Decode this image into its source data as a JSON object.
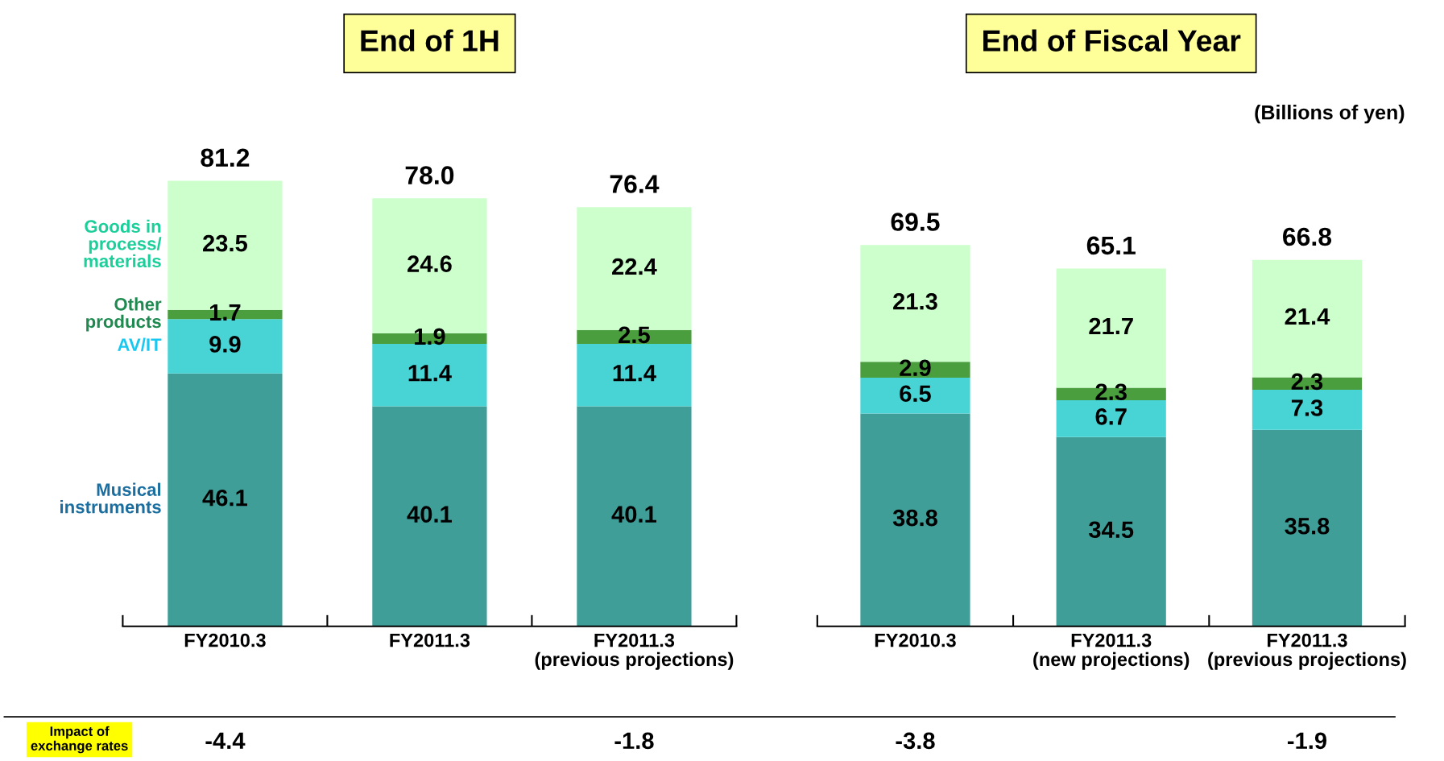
{
  "chart_data": [
    {
      "type": "bar",
      "title": "End of 1H",
      "stacked": true,
      "data_labels": true,
      "grid": false,
      "legend": false,
      "categories": [
        "FY2010.3",
        "FY2011.3",
        "FY2011.3\n(previous projections)"
      ],
      "series": [
        {
          "name": "Musical\ninstruments",
          "color": "#3f9f98",
          "values": [
            46.1,
            40.1,
            40.1
          ]
        },
        {
          "name": "AV/IT",
          "color": "#48d4d4",
          "values": [
            9.9,
            11.4,
            11.4
          ]
        },
        {
          "name": "Other\nproducts",
          "color": "#4a9e3e",
          "values": [
            1.7,
            1.9,
            2.5
          ]
        },
        {
          "name": "Goods in\nprocess/\nmaterials",
          "color": "#ccffcc",
          "values": [
            23.5,
            24.6,
            22.4
          ]
        }
      ],
      "totals": [
        "81.2",
        "78.0",
        "76.4"
      ],
      "annotations": [
        "Impact of\nexchange rates",
        "-4.4",
        "-1.8"
      ]
    },
    {
      "type": "bar",
      "title": "End of Fiscal Year",
      "stacked": true,
      "data_labels": true,
      "grid": false,
      "legend": false,
      "categories": [
        "FY2010.3",
        "FY2011.3\n(new projections)",
        "FY2011.3\n(previous projections)"
      ],
      "series": [
        {
          "color": "#3f9f98",
          "values": [
            38.8,
            34.5,
            35.8
          ]
        },
        {
          "color": "#48d4d4",
          "values": [
            6.5,
            6.7,
            7.3
          ]
        },
        {
          "color": "#4a9e3e",
          "values": [
            2.9,
            2.3,
            2.3
          ]
        },
        {
          "color": "#ccffcc",
          "values": [
            21.3,
            21.7,
            21.4
          ]
        }
      ],
      "totals": [
        "69.5",
        "65.1",
        "66.8"
      ],
      "annotations": [
        "(Billions of yen)",
        "-3.8",
        "-1.9"
      ]
    }
  ]
}
